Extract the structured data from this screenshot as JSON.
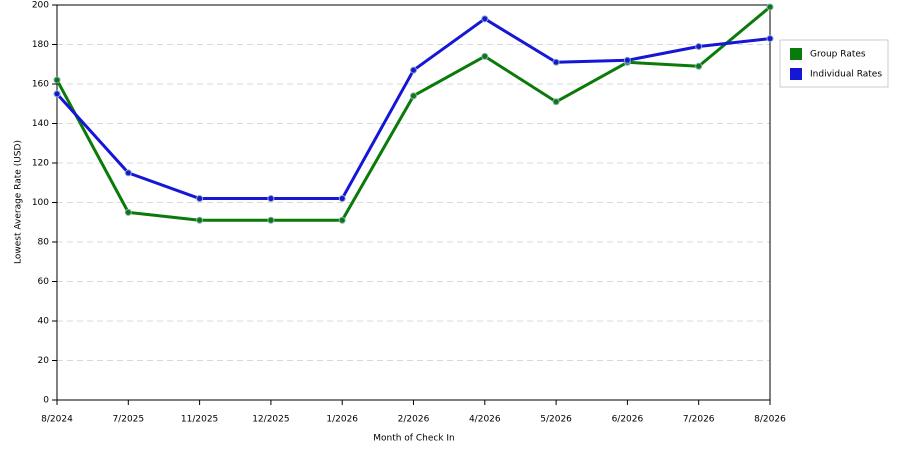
{
  "chart_data": {
    "type": "line",
    "x_label": "Month of Check In",
    "y_label": "Lowest Average Rate (USD)",
    "categories": [
      "8/2024",
      "7/2025",
      "11/2025",
      "12/2025",
      "1/2026",
      "2/2026",
      "4/2026",
      "5/2026",
      "6/2026",
      "7/2026",
      "8/2026"
    ],
    "series": [
      {
        "name": "Group Rates",
        "color": "#0a7a0a",
        "values": [
          162,
          95,
          91,
          91,
          91,
          154,
          174,
          151,
          171,
          169,
          199
        ]
      },
      {
        "name": "Individual Rates",
        "color": "#1616d6",
        "values": [
          155,
          115,
          102,
          102,
          102,
          167,
          193,
          171,
          172,
          179,
          183
        ]
      }
    ],
    "ylim": [
      0,
      200
    ],
    "yticks": [
      0,
      20,
      40,
      60,
      80,
      100,
      120,
      140,
      160,
      180,
      200
    ],
    "grid": true,
    "legend": "right"
  }
}
